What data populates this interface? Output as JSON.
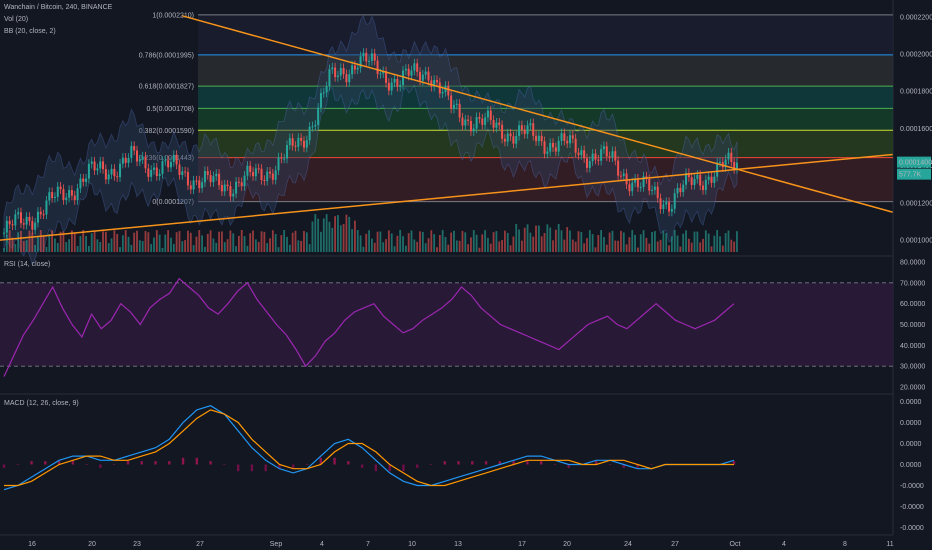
{
  "header": {
    "symbol": "Wanchain / Bitcoin, 240, BINANCE",
    "vol": "Vol (20)",
    "bb": "BB (20, close, 2)",
    "rsi": "RSI (14, close)",
    "macd": "MACD (12, 26, close, 9)"
  },
  "colors": {
    "background": "#131722",
    "up": "#26a69a",
    "down": "#ef5350",
    "trendline": "#f7931a",
    "rsi": "#9c27b0",
    "macd": "#2196f3",
    "signal": "#ff9800",
    "bb": "#4d6bb3"
  },
  "chart_data": [
    {
      "type": "candlestick",
      "title": "Wanchain / Bitcoin, 240, BINANCE",
      "x_ticks": [
        "16",
        "20",
        "23",
        "27",
        "Sep",
        "4",
        "7",
        "10",
        "13",
        "17",
        "20",
        "24",
        "27",
        "Oct",
        "4",
        "8",
        "11"
      ],
      "y_ticks": [
        "0.0002200",
        "0.0002000",
        "0.0001800",
        "0.0001600",
        "0.0001400",
        "0.0001200",
        "0.0001000"
      ],
      "ylim": [
        9.2e-05,
        0.000229
      ],
      "last_price_label": "0.0001400",
      "last_volume_label": "577.7K",
      "fibonacci": [
        {
          "label": "1(0.0002210)",
          "level": 0.000221,
          "fill": "#1a1d2e"
        },
        {
          "label": "0.786(0.0001995)",
          "level": 0.0001995,
          "fill": "#2a2d30"
        },
        {
          "label": "0.618(0.0001827)",
          "level": 0.0001827,
          "fill": "#0f3d3e"
        },
        {
          "label": "0.5(0.0001708)",
          "level": 0.0001708,
          "fill": "#153f2a"
        },
        {
          "label": "0.382(0.0001590)",
          "level": 0.000159,
          "fill": "#283e1e"
        },
        {
          "label": "0.236(0.0001443)",
          "level": 0.0001443,
          "fill": "#3a1e24"
        },
        {
          "label": "0(0.0001207)",
          "level": 0.0001207,
          "fill": "#3a1e24"
        }
      ],
      "fib_line_colors": [
        "#787b86",
        "#2196f3",
        "#4caf50",
        "#4caf50",
        "#cddc39",
        "#f44336",
        "#787b86"
      ],
      "trendlines": [
        {
          "from": [
            "Aug 27",
            0.0002205
          ],
          "to": [
            "Oct 11",
            0.000115
          ]
        },
        {
          "from": [
            "Aug 12",
            9.9e-05
          ],
          "to": [
            "Oct 11",
            0.000146
          ]
        }
      ]
    },
    {
      "type": "line",
      "title": "RSI (14, close)",
      "y_ticks": [
        "80.0000",
        "70.0000",
        "60.0000",
        "50.0000",
        "40.0000",
        "30.0000",
        "20.0000"
      ],
      "ylim": [
        20,
        80
      ],
      "bands": [
        70,
        30
      ],
      "series": [
        {
          "values": [
            25,
            35,
            45,
            52,
            60,
            68,
            58,
            50,
            44,
            55,
            48,
            52,
            60,
            56,
            50,
            58,
            62,
            65,
            72,
            68,
            64,
            58,
            55,
            60,
            66,
            70,
            62,
            56,
            50,
            45,
            38,
            30,
            35,
            42,
            46,
            52,
            56,
            58,
            60,
            54,
            50,
            46,
            48,
            52,
            55,
            58,
            62,
            68,
            64,
            58,
            54,
            50,
            48,
            46,
            44,
            42,
            40,
            38,
            42,
            46,
            50,
            52,
            54,
            50,
            48,
            52,
            56,
            60,
            56,
            52,
            50,
            48,
            50,
            52,
            56,
            60
          ]
        }
      ]
    },
    {
      "type": "line",
      "title": "MACD (12, 26, close, 9)",
      "y_ticks": [
        "0.0000",
        "0.0000",
        "0.0000",
        "0.0000",
        "-0.0000",
        "-0.0000",
        "-0.0000"
      ],
      "series": [
        {
          "values": [
            -6,
            -5,
            -3,
            -1,
            1,
            2,
            2,
            1,
            1,
            2,
            3,
            4,
            6,
            10,
            13,
            14,
            12,
            8,
            4,
            1,
            -1,
            -2,
            -1,
            2,
            5,
            6,
            4,
            1,
            -2,
            -4,
            -5,
            -5,
            -4,
            -3,
            -2,
            -1,
            0,
            1,
            2,
            2,
            1,
            0,
            0,
            1,
            1,
            0,
            -1,
            -1,
            0,
            0,
            0,
            0,
            0,
            1
          ]
        },
        {
          "values": [
            -5,
            -5,
            -4,
            -2,
            0,
            1,
            2,
            2,
            1,
            1,
            2,
            3,
            5,
            8,
            11,
            13,
            12,
            10,
            6,
            3,
            0,
            -1,
            -1,
            0,
            3,
            5,
            5,
            3,
            0,
            -2,
            -4,
            -5,
            -5,
            -4,
            -3,
            -2,
            -1,
            0,
            1,
            1,
            1,
            1,
            0,
            0,
            1,
            1,
            0,
            -1,
            0,
            0,
            0,
            0,
            0,
            0
          ]
        }
      ]
    }
  ]
}
